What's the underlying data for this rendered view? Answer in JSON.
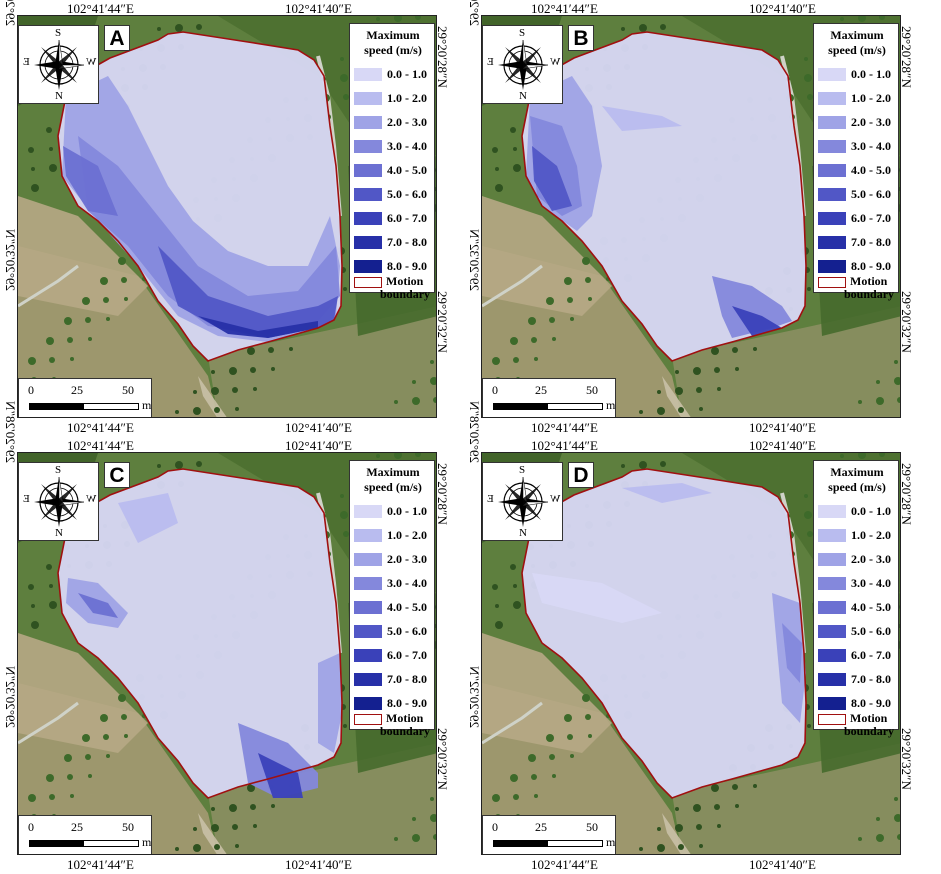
{
  "coords": {
    "lon_left": "102°41′44″E",
    "lon_right": "102°41′40″E",
    "lat_upper": "29°20′28″N",
    "lat_lower": "29°20′32″N"
  },
  "compass": {
    "north": "N",
    "south": "S",
    "east": "E",
    "west": "W"
  },
  "legend": {
    "title_line1": "Maximum",
    "title_line2": "speed (m/s)",
    "classes": [
      "0.0 - 1.0",
      "1.0 - 2.0",
      "2.0 - 3.0",
      "3.0 - 4.0",
      "4.0 - 5.0",
      "5.0 - 6.0",
      "6.0 - 7.0",
      "7.0 - 8.0",
      "8.0 - 9.0"
    ],
    "colors": [
      "#d8d8f6",
      "#b9bcef",
      "#9fa3e6",
      "#8488dc",
      "#6c70d2",
      "#5157c6",
      "#3a41b9",
      "#2730a8",
      "#142090"
    ],
    "boundary_line1": "Motion",
    "boundary_line2": "boundary",
    "boundary_color": "#a01010"
  },
  "scale_bar": {
    "tick_0": "0",
    "tick_25": "25",
    "tick_50": "50",
    "unit": "m"
  },
  "panels": [
    {
      "label": "A"
    },
    {
      "label": "B"
    },
    {
      "label": "C"
    },
    {
      "label": "D"
    }
  ]
}
